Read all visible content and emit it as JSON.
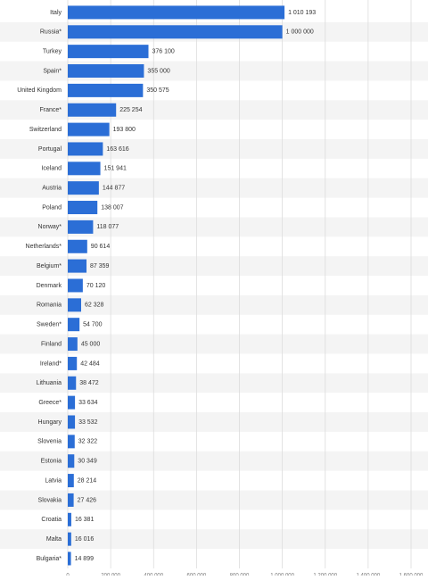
{
  "chart_data": {
    "type": "bar",
    "categories": [
      "Italy",
      "Russia*",
      "Turkey",
      "Spain*",
      "United Kingdom",
      "France*",
      "Switzerland",
      "Portugal",
      "Iceland",
      "Austria",
      "Poland",
      "Norway*",
      "Netherlands*",
      "Belgium*",
      "Denmark",
      "Romania",
      "Sweden*",
      "Finland",
      "Ireland*",
      "Lithuania",
      "Greece*",
      "Hungary",
      "Slovenia",
      "Estonia",
      "Latvia",
      "Slovakia",
      "Croatia",
      "Malta",
      "Bulgaria*"
    ],
    "values": [
      1010193,
      1000000,
      376100,
      355000,
      350575,
      225254,
      193800,
      163616,
      151941,
      144877,
      138007,
      118077,
      90614,
      87359,
      70120,
      62328,
      54700,
      45000,
      42484,
      38472,
      33634,
      33532,
      32322,
      30349,
      28214,
      27426,
      16381,
      16016,
      14899
    ],
    "value_labels": [
      "1 010 193",
      "1 000 000",
      "376 100",
      "355 000",
      "350 575",
      "225 254",
      "193 800",
      "163 616",
      "151 941",
      "144 877",
      "138 007",
      "118 077",
      "90 614",
      "87 359",
      "70 120",
      "62 328",
      "54 700",
      "45 000",
      "42 484",
      "38 472",
      "33 634",
      "33 532",
      "32 322",
      "30 349",
      "28 214",
      "27 426",
      "16 381",
      "16 016",
      "14 899"
    ],
    "color": "#2b6ed6",
    "xlim": [
      0,
      1600000
    ],
    "xticks": [
      0,
      {
        "value": 200000,
        "label": "200 000"
      },
      {
        "value": 400000,
        "label": "400 000"
      },
      {
        "value": 600000,
        "label": "600 000"
      },
      {
        "value": 800000,
        "label": "800 000"
      },
      {
        "value": 1000000,
        "label": "1 000 000"
      },
      {
        "value": 1200000,
        "label": "1 200 000"
      },
      {
        "value": 1400000,
        "label": "1 400 000"
      },
      {
        "value": 1600000,
        "label": "1 600 000"
      }
    ],
    "grid": true
  }
}
